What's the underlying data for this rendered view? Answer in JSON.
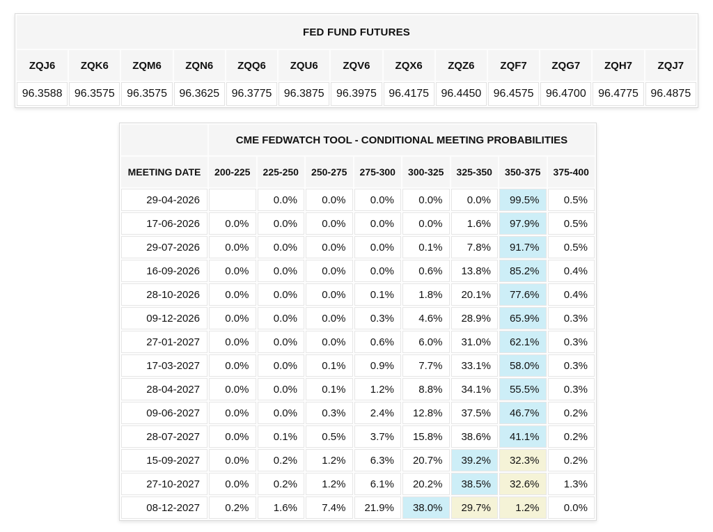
{
  "colors": {
    "header_bg": "#f5f5f5",
    "highlight_cyan": "#cdeef7",
    "highlight_yellow": "#f5f3d7"
  },
  "futures_table": {
    "title": "FED FUND FUTURES",
    "columns": [
      "ZQJ6",
      "ZQK6",
      "ZQM6",
      "ZQN6",
      "ZQQ6",
      "ZQU6",
      "ZQV6",
      "ZQX6",
      "ZQZ6",
      "ZQF7",
      "ZQG7",
      "ZQH7",
      "ZQJ7"
    ],
    "values": [
      "96.3588",
      "96.3575",
      "96.3575",
      "96.3625",
      "96.3775",
      "96.3875",
      "96.3975",
      "96.4175",
      "96.4450",
      "96.4575",
      "96.4700",
      "96.4775",
      "96.4875"
    ]
  },
  "fedwatch_table": {
    "title": "CME FEDWATCH TOOL - CONDITIONAL MEETING PROBABILITIES",
    "date_column_header": "MEETING DATE",
    "rate_columns": [
      "200-225",
      "225-250",
      "250-275",
      "275-300",
      "300-325",
      "325-350",
      "350-375",
      "375-400"
    ],
    "rows": [
      {
        "date": "29-04-2026",
        "values": [
          "",
          "0.0%",
          "0.0%",
          "0.0%",
          "0.0%",
          "0.0%",
          "99.5%",
          "0.5%"
        ],
        "highlights": [
          null,
          null,
          null,
          null,
          null,
          null,
          "cyan",
          null
        ]
      },
      {
        "date": "17-06-2026",
        "values": [
          "0.0%",
          "0.0%",
          "0.0%",
          "0.0%",
          "0.0%",
          "1.6%",
          "97.9%",
          "0.5%"
        ],
        "highlights": [
          null,
          null,
          null,
          null,
          null,
          null,
          "cyan",
          null
        ]
      },
      {
        "date": "29-07-2026",
        "values": [
          "0.0%",
          "0.0%",
          "0.0%",
          "0.0%",
          "0.1%",
          "7.8%",
          "91.7%",
          "0.5%"
        ],
        "highlights": [
          null,
          null,
          null,
          null,
          null,
          null,
          "cyan",
          null
        ]
      },
      {
        "date": "16-09-2026",
        "values": [
          "0.0%",
          "0.0%",
          "0.0%",
          "0.0%",
          "0.6%",
          "13.8%",
          "85.2%",
          "0.4%"
        ],
        "highlights": [
          null,
          null,
          null,
          null,
          null,
          null,
          "cyan",
          null
        ]
      },
      {
        "date": "28-10-2026",
        "values": [
          "0.0%",
          "0.0%",
          "0.0%",
          "0.1%",
          "1.8%",
          "20.1%",
          "77.6%",
          "0.4%"
        ],
        "highlights": [
          null,
          null,
          null,
          null,
          null,
          null,
          "cyan",
          null
        ]
      },
      {
        "date": "09-12-2026",
        "values": [
          "0.0%",
          "0.0%",
          "0.0%",
          "0.3%",
          "4.6%",
          "28.9%",
          "65.9%",
          "0.3%"
        ],
        "highlights": [
          null,
          null,
          null,
          null,
          null,
          null,
          "cyan",
          null
        ]
      },
      {
        "date": "27-01-2027",
        "values": [
          "0.0%",
          "0.0%",
          "0.0%",
          "0.6%",
          "6.0%",
          "31.0%",
          "62.1%",
          "0.3%"
        ],
        "highlights": [
          null,
          null,
          null,
          null,
          null,
          null,
          "cyan",
          null
        ]
      },
      {
        "date": "17-03-2027",
        "values": [
          "0.0%",
          "0.0%",
          "0.1%",
          "0.9%",
          "7.7%",
          "33.1%",
          "58.0%",
          "0.3%"
        ],
        "highlights": [
          null,
          null,
          null,
          null,
          null,
          null,
          "cyan",
          null
        ]
      },
      {
        "date": "28-04-2027",
        "values": [
          "0.0%",
          "0.0%",
          "0.1%",
          "1.2%",
          "8.8%",
          "34.1%",
          "55.5%",
          "0.3%"
        ],
        "highlights": [
          null,
          null,
          null,
          null,
          null,
          null,
          "cyan",
          null
        ]
      },
      {
        "date": "09-06-2027",
        "values": [
          "0.0%",
          "0.0%",
          "0.3%",
          "2.4%",
          "12.8%",
          "37.5%",
          "46.7%",
          "0.2%"
        ],
        "highlights": [
          null,
          null,
          null,
          null,
          null,
          null,
          "cyan",
          null
        ]
      },
      {
        "date": "28-07-2027",
        "values": [
          "0.0%",
          "0.1%",
          "0.5%",
          "3.7%",
          "15.8%",
          "38.6%",
          "41.1%",
          "0.2%"
        ],
        "highlights": [
          null,
          null,
          null,
          null,
          null,
          null,
          "cyan",
          null
        ]
      },
      {
        "date": "15-09-2027",
        "values": [
          "0.0%",
          "0.2%",
          "1.2%",
          "6.3%",
          "20.7%",
          "39.2%",
          "32.3%",
          "0.2%"
        ],
        "highlights": [
          null,
          null,
          null,
          null,
          null,
          "cyan",
          "yellow",
          null
        ]
      },
      {
        "date": "27-10-2027",
        "values": [
          "0.0%",
          "0.2%",
          "1.2%",
          "6.1%",
          "20.2%",
          "38.5%",
          "32.6%",
          "1.3%"
        ],
        "highlights": [
          null,
          null,
          null,
          null,
          null,
          "cyan",
          "yellow",
          null
        ]
      },
      {
        "date": "08-12-2027",
        "values": [
          "0.2%",
          "1.6%",
          "7.4%",
          "21.9%",
          "38.0%",
          "29.7%",
          "1.2%",
          "0.0%"
        ],
        "highlights": [
          null,
          null,
          null,
          null,
          "cyan",
          "yellow",
          "yellow",
          null
        ]
      }
    ]
  }
}
